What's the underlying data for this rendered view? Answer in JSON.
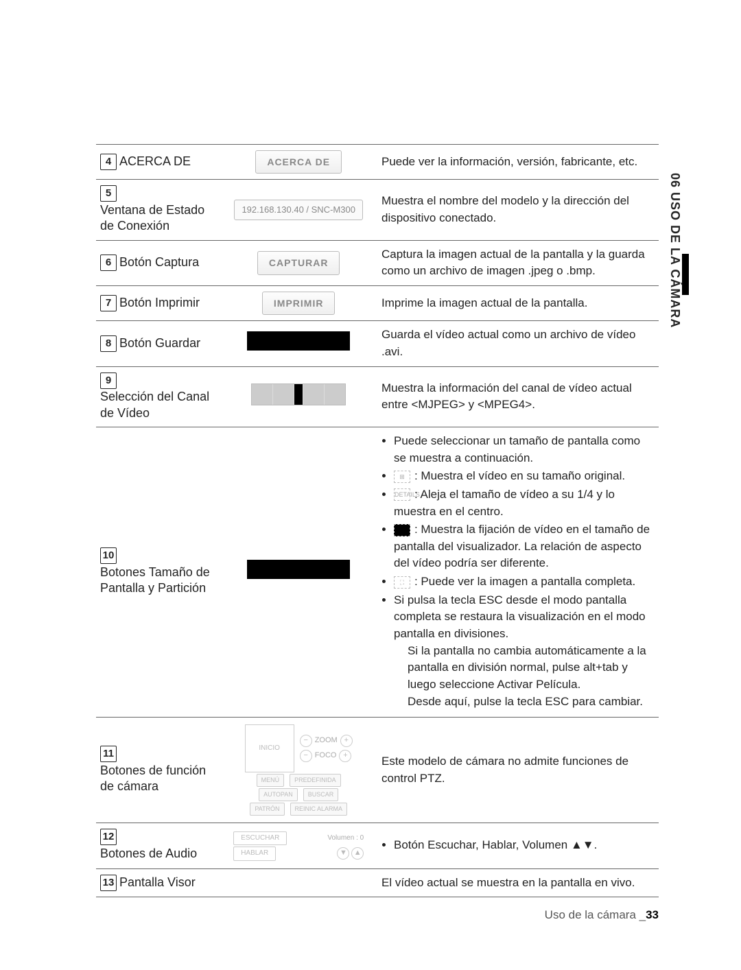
{
  "sideTab": "06 USO DE LA CÁMARA",
  "footer": {
    "text": "Uso de la cámara _",
    "page": "33"
  },
  "rows": [
    {
      "n": "4",
      "name": "ACERCA DE",
      "uiType": "btn",
      "ui": "ACERCA DE",
      "desc": "Puede ver la información, versión, fabricante, etc."
    },
    {
      "n": "5",
      "name": "Ventana de Estado de Conexión",
      "uiType": "field",
      "ui": "192.168.130.40 / SNC-M300",
      "desc": "Muestra el nombre del modelo y la dirección del dispositivo conectado."
    },
    {
      "n": "6",
      "name": "Botón Captura",
      "uiType": "btn",
      "ui": "CAPTURAR",
      "desc": "Captura la imagen actual de la pantalla y la guarda como un archivo de imagen .jpeg o .bmp."
    },
    {
      "n": "7",
      "name": "Botón Imprimir",
      "uiType": "btn",
      "ui": "IMPRIMIR",
      "desc": "Imprime la imagen actual de la pantalla."
    },
    {
      "n": "8",
      "name": "Botón Guardar",
      "uiType": "blackbox",
      "desc": "Guarda el vídeo actual como un archivo de vídeo .avi."
    },
    {
      "n": "9",
      "name": "Selección del Canal de Vídeo",
      "uiType": "channel",
      "desc": "Muestra la información del canal de vídeo actual entre <MJPEG> y <MPEG4>."
    },
    {
      "n": "10",
      "name": "Botones Tamaño de Pantalla y Partición",
      "uiType": "blackbox",
      "desc": ""
    },
    {
      "n": "11",
      "name": "Botones de función de cámara",
      "uiType": "ptz",
      "desc": "Este modelo de cámara no admite funciones de control PTZ."
    },
    {
      "n": "12",
      "name": "Botones de Audio",
      "uiType": "audio",
      "desc": ""
    },
    {
      "n": "13",
      "name": "Pantalla Visor",
      "uiType": "none",
      "desc": "El vídeo actual se muestra en la pantalla en vivo."
    }
  ],
  "row10": {
    "b0": "Puede seleccionar un tamaño de pantalla como se muestra a continuación.",
    "b1": ": Muestra el vídeo en su tamaño original.",
    "b2": ": Aleja el tamaño de vídeo a su 1/4 y lo muestra en el centro.",
    "b3": ": Muestra la fijación de vídeo en el tamaño de pantalla del visualizador. La relación de aspecto del vídeo podría ser diferente.",
    "b4": ": Puede ver la imagen a pantalla completa.",
    "b5": "Si pulsa la tecla ESC desde el modo pantalla completa se restaura la visualización en el modo pantalla en divisiones.",
    "b6": "Si la pantalla no cambia automáticamente a la pantalla en división normal, pulse alt+tab y luego seleccione Activar Película.",
    "b7": "Desde aquí, pulse la tecla ESC para cambiar."
  },
  "row12": {
    "bullet": "Botón Escuchar, Hablar, Volumen ▲▼."
  },
  "ptz": {
    "center": "INICIO",
    "zoom": "ZOOM",
    "focus": "FOCO",
    "b1": "MENÚ",
    "b2": "PREDEFINIDA",
    "b3": "AUTOPAN",
    "b4": "BUSCAR",
    "b5": "PATRÓN",
    "b6": "REINIC ALARMA"
  },
  "audio": {
    "vol": "Volumen : 0",
    "listen": "ESCUCHAR",
    "talk": "HABLAR"
  }
}
